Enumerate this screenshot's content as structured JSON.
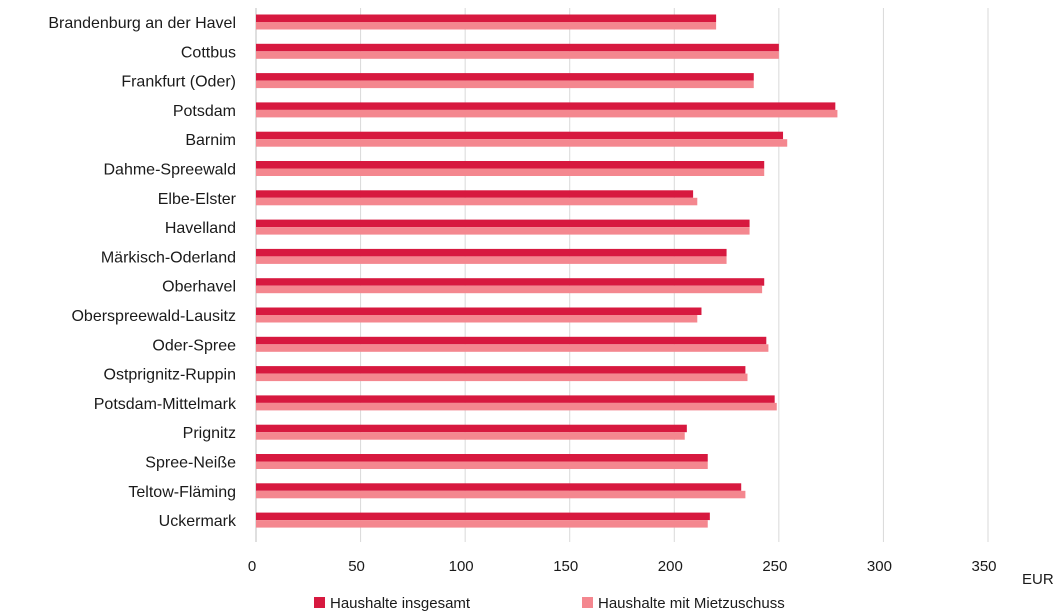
{
  "chart_data": {
    "type": "bar",
    "orientation": "horizontal",
    "categories": [
      "Brandenburg an der Havel",
      "Cottbus",
      "Frankfurt (Oder)",
      "Potsdam",
      "Barnim",
      "Dahme-Spreewald",
      "Elbe-Elster",
      "Havelland",
      "Märkisch-Oderland",
      "Oberhavel",
      "Oberspreewald-Lausitz",
      "Oder-Spree",
      "Ostprignitz-Ruppin",
      "Potsdam-Mittelmark",
      "Prignitz",
      "Spree-Neiße",
      "Teltow-Fläming",
      "Uckermark"
    ],
    "series": [
      {
        "name": "Haushalte insgesamt",
        "color": "#d7193f",
        "values": [
          220,
          250,
          238,
          277,
          252,
          243,
          209,
          236,
          225,
          243,
          213,
          244,
          234,
          248,
          206,
          216,
          232,
          217
        ]
      },
      {
        "name": "Haushalte mit Mietzuschuss",
        "color": "#f4878f",
        "values": [
          220,
          250,
          238,
          278,
          254,
          243,
          211,
          236,
          225,
          242,
          211,
          245,
          235,
          249,
          205,
          216,
          234,
          216
        ]
      }
    ],
    "xlim": [
      0,
      350
    ],
    "xticks": [
      0,
      50,
      100,
      150,
      200,
      250,
      300,
      350
    ],
    "xunit": "EUR",
    "grid": "vertical",
    "legend": "bottom-center",
    "gridline_color": "#d9d9d9"
  }
}
